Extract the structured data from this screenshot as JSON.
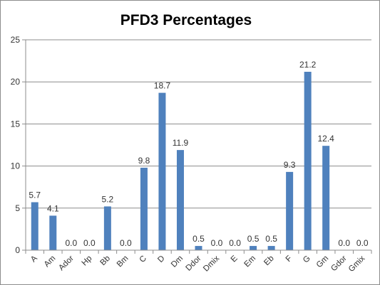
{
  "chart_data": {
    "type": "bar",
    "title": "PFD3 Percentages",
    "xlabel": "",
    "ylabel": "",
    "ylim": [
      0,
      25
    ],
    "yticks": [
      0,
      5,
      10,
      15,
      20,
      25
    ],
    "grid": true,
    "legend": "none",
    "bar_color": "#4f81bd",
    "categories": [
      "A",
      "Am",
      "Ador",
      "Hp",
      "Bb",
      "Bm",
      "C",
      "D",
      "Dm",
      "Ddor",
      "Dmix",
      "E",
      "Em",
      "Eb",
      "F",
      "G",
      "Gm",
      "Gdor",
      "Gmix"
    ],
    "values": [
      5.7,
      4.1,
      0.0,
      0.0,
      5.2,
      0.0,
      9.8,
      18.7,
      11.9,
      0.5,
      0.0,
      0.0,
      0.5,
      0.5,
      9.3,
      21.2,
      12.4,
      0.0,
      0.0
    ],
    "data_labels": [
      "5.7",
      "4.1",
      "0.0",
      "0.0",
      "5.2",
      "0.0",
      "9.8",
      "18.7",
      "11.9",
      "0.5",
      "0.0",
      "0.0",
      "0.5",
      "0.5",
      "9.3",
      "21.2",
      "12.4",
      "0.0",
      "0.0"
    ]
  }
}
